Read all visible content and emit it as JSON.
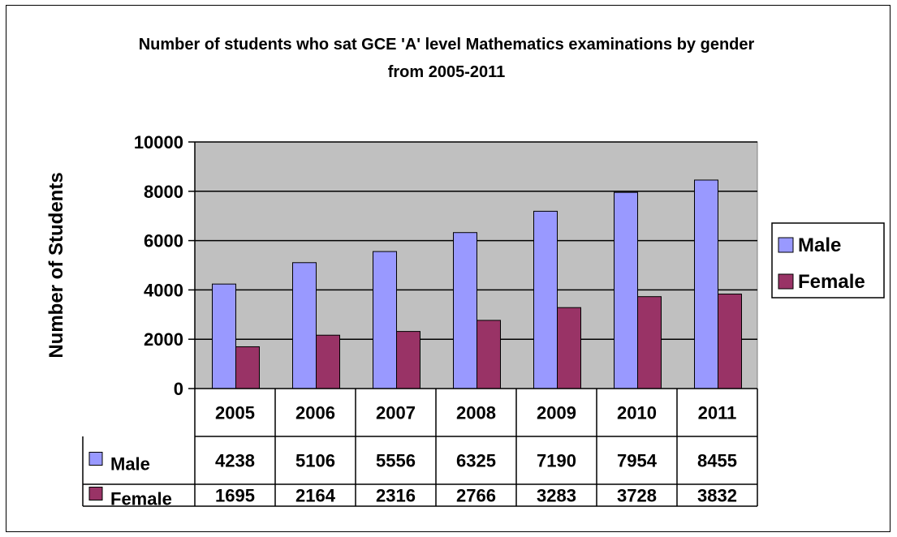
{
  "chart_data": {
    "type": "bar",
    "title": "Number of students who sat GCE 'A' level Mathematics examinations by gender from 2005-2011",
    "xlabel": "",
    "ylabel": "Number of Students",
    "ylim": [
      0,
      10000
    ],
    "yticks": [
      "0",
      "2000",
      "4000",
      "6000",
      "8000",
      "10000"
    ],
    "grid": true,
    "legend": "right",
    "categories": [
      "2005",
      "2006",
      "2007",
      "2008",
      "2009",
      "2010",
      "2011"
    ],
    "series": [
      {
        "name": "Male",
        "color": "#9999ff",
        "values": [
          4238,
          5106,
          5556,
          6325,
          7190,
          7954,
          8455
        ]
      },
      {
        "name": "Female",
        "color": "#993366",
        "values": [
          1695,
          2164,
          2316,
          2766,
          3283,
          3728,
          3832
        ]
      }
    ],
    "data_table": true
  }
}
